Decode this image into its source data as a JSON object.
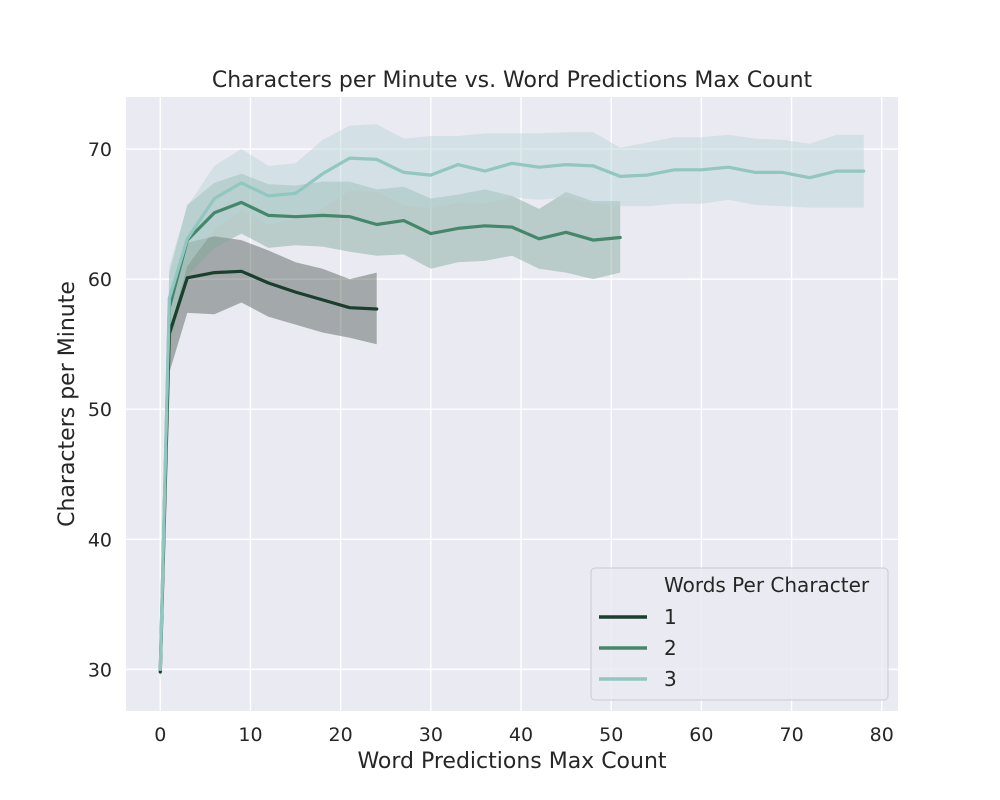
{
  "chart_data": {
    "type": "line",
    "title": "Characters per Minute vs. Word Predictions Max Count",
    "xlabel": "Word Predictions Max Count",
    "ylabel": "Characters per Minute",
    "xlim": [
      -3.8,
      81.8
    ],
    "ylim": [
      26.8,
      74.0
    ],
    "xticks": [
      0,
      10,
      20,
      30,
      40,
      50,
      60,
      70,
      80
    ],
    "yticks": [
      30,
      40,
      50,
      60,
      70
    ],
    "grid": true,
    "background": "#eaeaf2",
    "legend": {
      "title": "Words Per Character",
      "position": "bottom-right"
    },
    "series": [
      {
        "name": "1",
        "color": "#1a3f2c",
        "band_color": "#4d5a52",
        "x": [
          0,
          1,
          3,
          6,
          9,
          12,
          15,
          18,
          21,
          24
        ],
        "y": [
          29.8,
          55.8,
          60.1,
          60.5,
          60.6,
          59.7,
          59.0,
          58.4,
          57.8,
          57.7
        ],
        "lower": [
          29.0,
          52.8,
          57.4,
          57.3,
          58.2,
          57.1,
          56.5,
          55.9,
          55.5,
          55.0
        ],
        "upper": [
          30.4,
          59.0,
          62.8,
          63.3,
          63.0,
          62.2,
          61.3,
          60.8,
          60.0,
          60.5
        ]
      },
      {
        "name": "2",
        "color": "#45876b",
        "band_color": "#7fa99a",
        "x": [
          0,
          1,
          3,
          6,
          9,
          12,
          15,
          18,
          21,
          24,
          27,
          30,
          33,
          36,
          39,
          42,
          45,
          48,
          51
        ],
        "y": [
          30.0,
          57.8,
          63.0,
          65.1,
          65.9,
          64.9,
          64.8,
          64.9,
          64.8,
          64.2,
          64.5,
          63.5,
          63.9,
          64.1,
          64.0,
          63.1,
          63.6,
          63.0,
          63.2
        ],
        "lower": [
          29.5,
          54.8,
          60.2,
          62.4,
          63.5,
          62.4,
          62.6,
          62.5,
          62.1,
          61.8,
          61.9,
          60.8,
          61.3,
          61.4,
          61.8,
          60.8,
          60.5,
          60.0,
          60.5
        ],
        "upper": [
          30.5,
          60.5,
          65.7,
          67.4,
          68.1,
          67.3,
          67.2,
          67.5,
          67.5,
          66.9,
          67.1,
          66.2,
          66.5,
          66.9,
          66.4,
          65.4,
          66.7,
          66.0,
          66.0
        ]
      },
      {
        "name": "3",
        "color": "#92c6c0",
        "band_color": "#b7d4d4",
        "x": [
          0,
          1,
          3,
          6,
          9,
          12,
          15,
          18,
          21,
          24,
          27,
          30,
          33,
          36,
          39,
          42,
          45,
          48,
          51,
          54,
          57,
          60,
          63,
          66,
          69,
          72,
          75,
          78
        ],
        "y": [
          30.0,
          58.5,
          63.1,
          66.2,
          67.4,
          66.4,
          66.6,
          68.1,
          69.3,
          69.2,
          68.2,
          68.0,
          68.8,
          68.3,
          68.9,
          68.6,
          68.8,
          68.7,
          67.9,
          68.0,
          68.4,
          68.4,
          68.6,
          68.2,
          68.2,
          67.8,
          68.3,
          68.3
        ],
        "lower": [
          29.5,
          56.0,
          61.0,
          63.8,
          65.3,
          64.2,
          64.6,
          65.4,
          66.8,
          66.7,
          65.7,
          65.4,
          65.9,
          65.8,
          66.3,
          66.1,
          66.3,
          65.8,
          65.6,
          65.6,
          65.8,
          65.8,
          66.1,
          65.7,
          65.6,
          65.5,
          65.5,
          65.5
        ],
        "upper": [
          30.5,
          61.0,
          65.6,
          68.7,
          70.0,
          68.7,
          68.9,
          70.7,
          71.8,
          71.9,
          70.8,
          71.0,
          71.0,
          71.2,
          71.2,
          71.2,
          71.3,
          71.3,
          70.1,
          70.5,
          70.9,
          70.9,
          71.1,
          70.8,
          70.7,
          70.4,
          71.1,
          71.1
        ]
      }
    ]
  }
}
